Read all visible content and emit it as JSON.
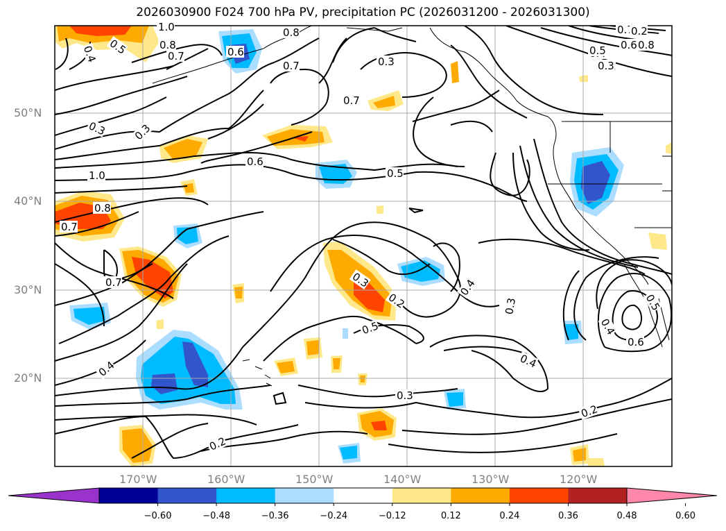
{
  "title": "2026030900 F024 700 hPa PV, precipitation PC (2026031200 - 2026031300)",
  "lat_labels": [
    "50°N",
    "40°N",
    "30°N",
    "20°N"
  ],
  "lon_labels": [
    "170°W",
    "160°W",
    "150°W",
    "140°W",
    "130°W",
    "120°W"
  ],
  "contour_labels": [
    "1.0",
    "0.8",
    "0.7",
    "0.8",
    "0.6",
    "0.4",
    "0.5",
    "0.7",
    "0.3",
    "0.7",
    "0.3",
    "0.3",
    "0.4",
    "1.0",
    "0.6",
    "0.5",
    "0.8",
    "0.7",
    "0.7",
    "0.3",
    "0.2",
    "0.5",
    "0.4",
    "0.3",
    "0.4",
    "0.6",
    "0.5",
    "0.4",
    "0.2",
    "0.3",
    "0.4",
    "0.2",
    "0.2",
    "0.7",
    "0.8",
    "0.6",
    "0.5",
    "0.3",
    "0.2"
  ],
  "colorbar": {
    "ticks": [
      "−0.60",
      "−0.48",
      "−0.36",
      "−0.24",
      "−0.12",
      "0.12",
      "0.24",
      "0.36",
      "0.48",
      "0.60"
    ],
    "colors": [
      "#9933cc",
      "#000099",
      "#3355cc",
      "#00bbff",
      "#aaddff",
      "#ffffff",
      "#ffe88a",
      "#ffaa00",
      "#ff4400",
      "#b22222",
      "#ff88aa"
    ]
  }
}
